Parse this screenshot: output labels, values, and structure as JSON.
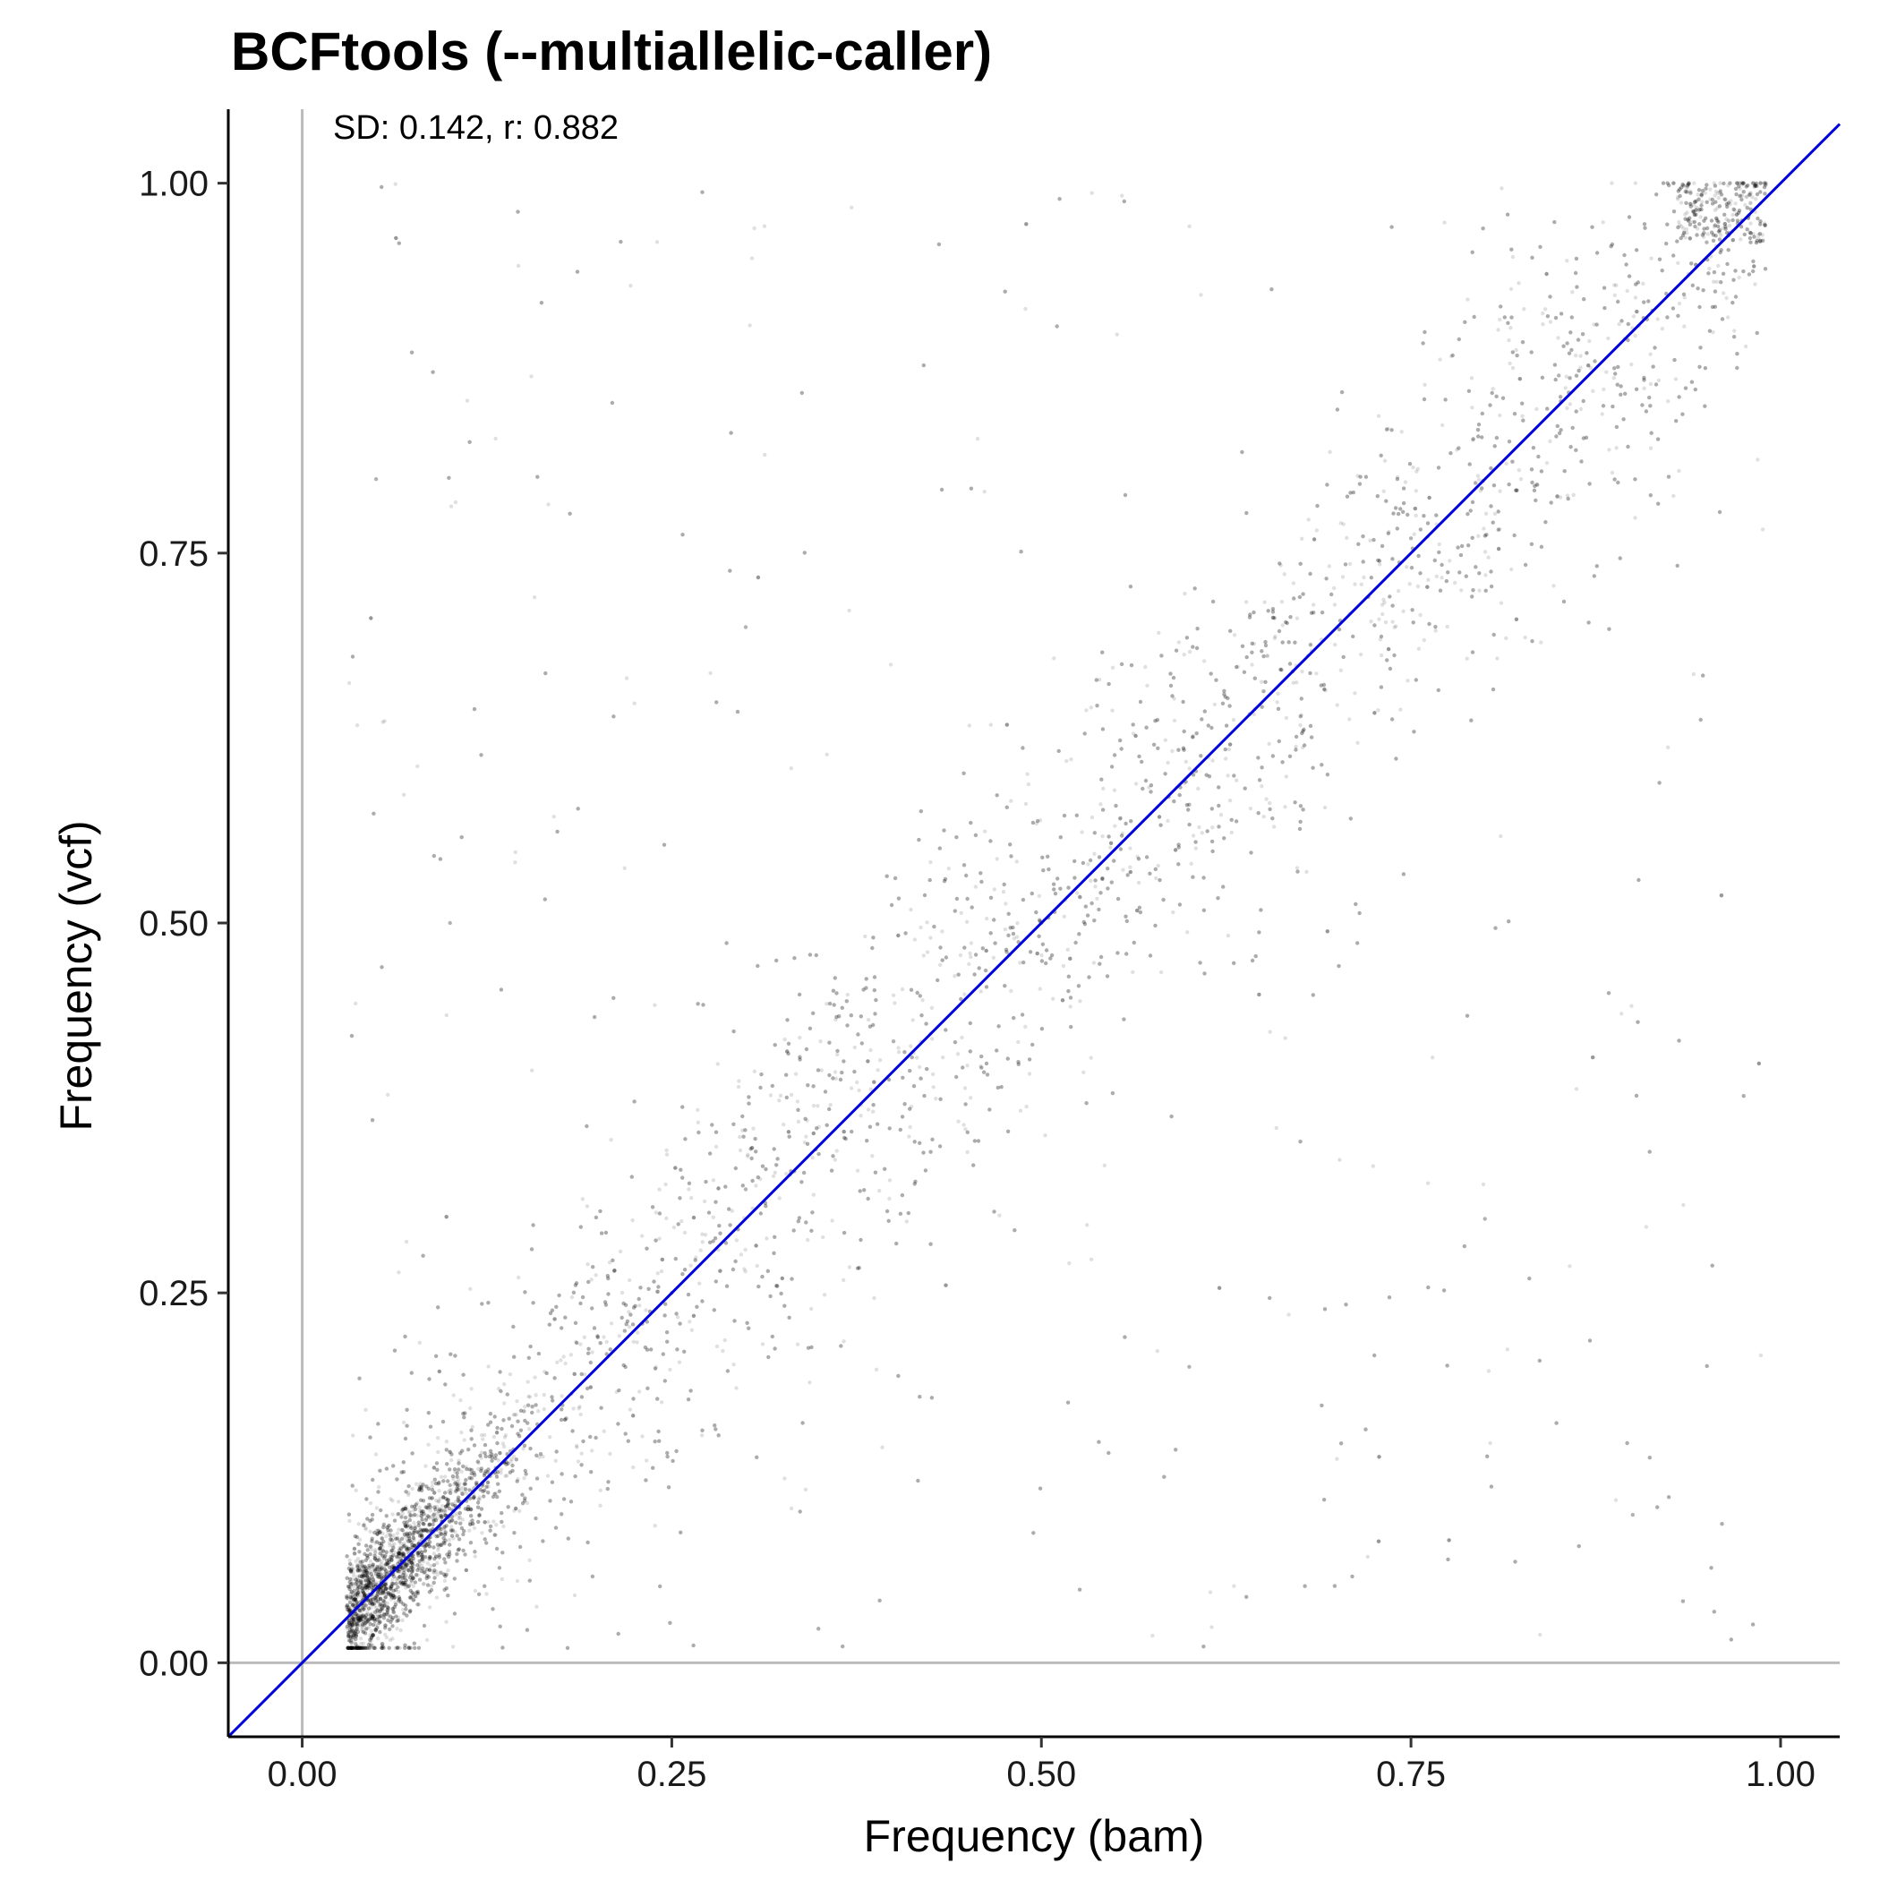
{
  "chart_data": {
    "type": "scatter",
    "title": "BCFtools (--multiallelic-caller)",
    "xlabel": "Frequency (bam)",
    "ylabel": "Frequency (vcf)",
    "annotation": "SD: 0.142, r: 0.882",
    "xlim": [
      -0.05,
      1.04
    ],
    "ylim": [
      -0.05,
      1.05
    ],
    "xticks": [
      "0.00",
      "0.25",
      "0.50",
      "0.75",
      "1.00"
    ],
    "yticks": [
      "0.00",
      "0.25",
      "0.50",
      "0.75",
      "1.00"
    ],
    "xtick_values": [
      0,
      0.25,
      0.5,
      0.75,
      1.0
    ],
    "ytick_values": [
      0,
      0.25,
      0.5,
      0.75,
      1.0
    ],
    "grid": false,
    "reference_lines": {
      "identity": {
        "intercept": 0,
        "slope": 1,
        "color": "#0000dd"
      },
      "hline": {
        "y": 0,
        "color": "#bbbbbb"
      },
      "vline": {
        "x": 0,
        "color": "#bbbbbb"
      }
    },
    "points_summary": {
      "x_range": [
        0.03,
        0.99
      ],
      "y_range": [
        0.01,
        1.0
      ],
      "note": "dense cloud along identity line, densest near (0.05, 0.05)"
    },
    "sample_points": [
      [
        0.04,
        0.03
      ],
      [
        0.05,
        0.06
      ],
      [
        0.06,
        0.05
      ],
      [
        0.08,
        0.09
      ],
      [
        0.1,
        0.12
      ],
      [
        0.12,
        0.1
      ],
      [
        0.15,
        0.17
      ],
      [
        0.2,
        0.22
      ],
      [
        0.25,
        0.25
      ],
      [
        0.3,
        0.32
      ],
      [
        0.33,
        0.33
      ],
      [
        0.4,
        0.42
      ],
      [
        0.5,
        0.5
      ],
      [
        0.6,
        0.58
      ],
      [
        0.67,
        0.67
      ],
      [
        0.75,
        0.76
      ],
      [
        0.85,
        0.87
      ],
      [
        0.95,
        0.96
      ],
      [
        0.99,
        1.0
      ],
      [
        0.1,
        0.5
      ],
      [
        0.3,
        0.7
      ],
      [
        0.6,
        0.2
      ],
      [
        0.8,
        0.3
      ],
      [
        0.05,
        0.8
      ],
      [
        0.9,
        0.1
      ]
    ],
    "colors": {
      "points": "#000000",
      "identity": "#0000dd",
      "zero_lines": "#bbbbbb"
    }
  }
}
